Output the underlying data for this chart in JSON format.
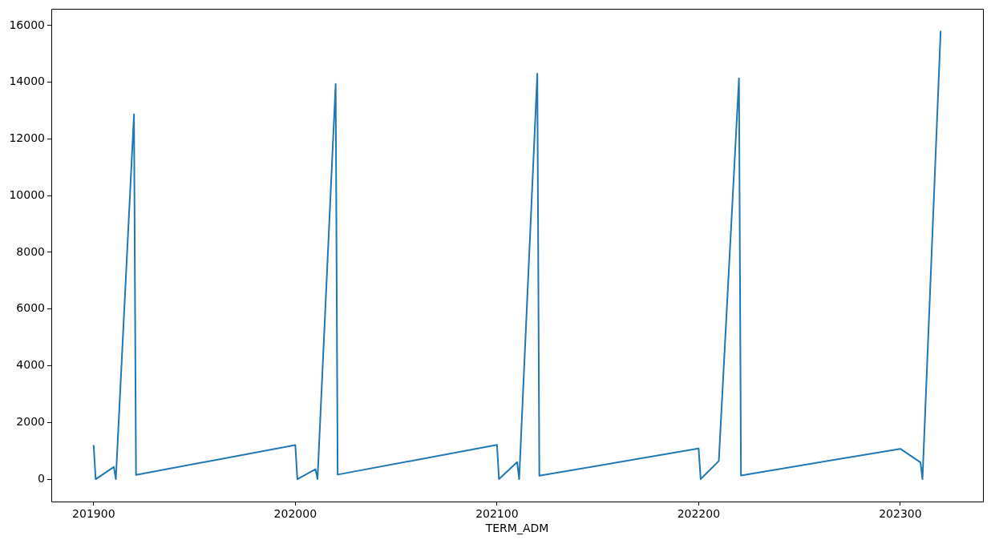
{
  "chart_data": {
    "type": "line",
    "xlabel": "TERM_ADM",
    "x": [
      201900,
      201901,
      201910,
      201911,
      201920,
      201921,
      202000,
      202001,
      202010,
      202011,
      202020,
      202021,
      202100,
      202101,
      202110,
      202111,
      202120,
      202121,
      202200,
      202201,
      202210,
      202220,
      202221,
      202300,
      202310,
      202311,
      202320
    ],
    "series": [
      {
        "color": "#1f77b4",
        "values": [
          1180,
          0,
          430,
          0,
          12870,
          150,
          1200,
          0,
          350,
          0,
          13940,
          160,
          1210,
          0,
          600,
          0,
          14300,
          120,
          1080,
          0,
          640,
          14140,
          130,
          1070,
          590,
          0,
          15790
        ]
      }
    ],
    "xlim": [
      201879,
      202341
    ],
    "xticks": [
      201900,
      202000,
      202100,
      202200,
      202300
    ],
    "ylim": [
      -790,
      16580
    ],
    "yticks": [
      0,
      2000,
      4000,
      6000,
      8000,
      10000,
      12000,
      14000,
      16000
    ]
  }
}
